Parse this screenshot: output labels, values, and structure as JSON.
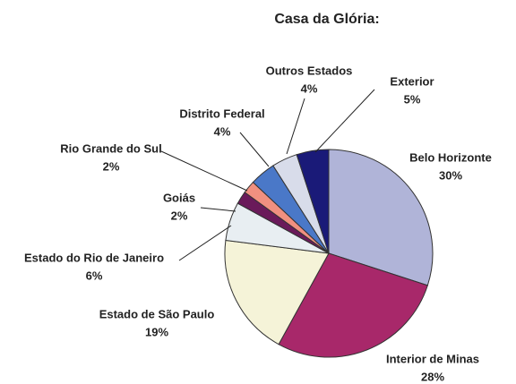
{
  "chart_data": {
    "type": "pie",
    "title": "Casa da Glória:",
    "categories": [
      "Belo Horizonte",
      "Interior de Minas",
      "Estado de São Paulo",
      "Estado do Rio de Janeiro",
      "Goiás",
      "Rio Grande do Sul",
      "Distrito Federal",
      "Outros Estados",
      "Exterior"
    ],
    "values": [
      30,
      28,
      19,
      6,
      2,
      2,
      4,
      4,
      5
    ],
    "value_labels": [
      "30%",
      "28%",
      "19%",
      "6%",
      "2%",
      "2%",
      "4%",
      "4%",
      "5%"
    ],
    "colors": [
      "#b0b4d8",
      "#a8286a",
      "#f5f3d8",
      "#e8eef2",
      "#6a1a5a",
      "#f09080",
      "#4a78c8",
      "#d8dcea",
      "#1a1a78"
    ]
  }
}
